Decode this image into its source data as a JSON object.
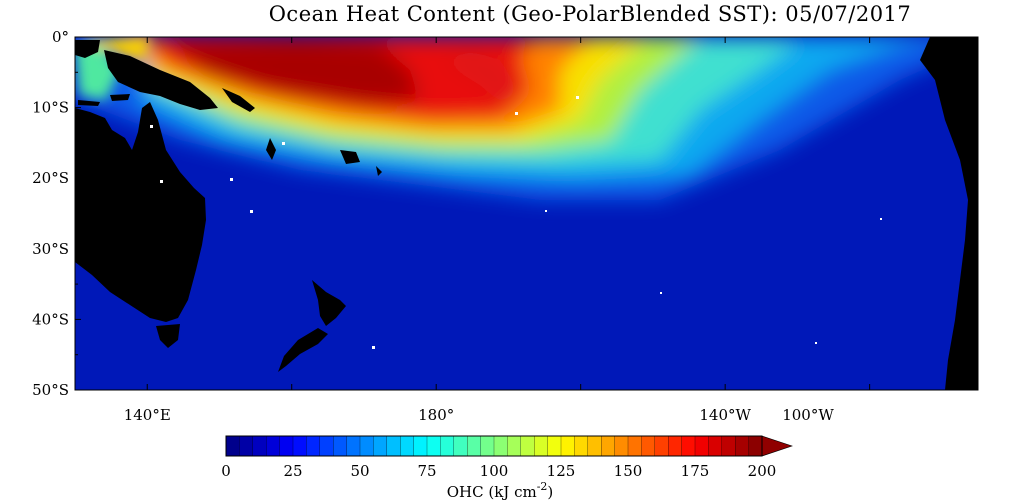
{
  "title": "Ocean Heat Content (Geo-PolarBlended SST): 05/07/2017",
  "map": {
    "lon_range": [
      130,
      255
    ],
    "lat_range": [
      0,
      -50
    ],
    "lat_ticks": [
      {
        "value": 0,
        "label": "0°"
      },
      {
        "value": -10,
        "label": "10°S"
      },
      {
        "value": -20,
        "label": "20°S"
      },
      {
        "value": -30,
        "label": "30°S"
      },
      {
        "value": -40,
        "label": "40°S"
      },
      {
        "value": -50,
        "label": "50°S"
      }
    ],
    "lon_ticks": [
      {
        "value": 140,
        "label": "140°E"
      },
      {
        "value": 180,
        "label": "180°"
      },
      {
        "value": 220,
        "label": "140°W"
      },
      {
        "value": 260,
        "label": "100°W"
      }
    ],
    "colors": {
      "land": "#000000",
      "ocean_low": "#0000a0",
      "ocean_high": "#8a0000"
    }
  },
  "colorbar": {
    "ticks": [
      "0",
      "25",
      "50",
      "75",
      "100",
      "125",
      "150",
      "175",
      "200"
    ],
    "min": 0,
    "max": 200,
    "label_main": "OHC (kJ cm",
    "label_sup": "-2",
    "label_end": ")"
  }
}
